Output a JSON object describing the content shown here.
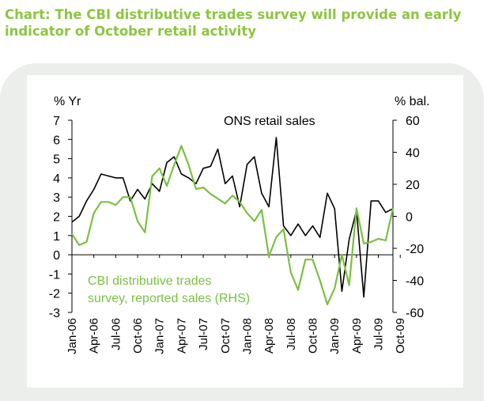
{
  "title": "Chart: The CBI distributive trades survey will provide an early indicator of October retail activity",
  "colors": {
    "accent": "#8cc63f",
    "panel": "#ebeeeb",
    "line_ons": "#000000",
    "line_cbi": "#7ac143"
  },
  "chart_data": {
    "type": "line",
    "left_axis_label": "% Yr",
    "right_axis_label": "% bal.",
    "left_ylim": [
      -3,
      7
    ],
    "right_ylim": [
      -60,
      60
    ],
    "left_ticks": [
      7,
      6,
      5,
      4,
      3,
      2,
      1,
      0,
      -1,
      -2,
      -3
    ],
    "right_ticks": [
      60,
      40,
      20,
      0,
      -20,
      -40,
      -60
    ],
    "x_tick_labels": [
      "Jan-06",
      "Apr-06",
      "Jul-06",
      "Oct-06",
      "Jan-07",
      "Apr-07",
      "Jul-07",
      "Oct-07",
      "Jan-08",
      "Apr-08",
      "Jul-08",
      "Oct-08",
      "Jan-09",
      "Apr-09",
      "Jul-09",
      "Oct-09"
    ],
    "x_tick_every_months": 3,
    "annotations": {
      "ons": "ONS retail sales",
      "cbi_line1": "CBI distributive trades",
      "cbi_line2": "survey, reported sales (RHS)"
    },
    "series": [
      {
        "name": "ONS retail sales",
        "axis": "left",
        "values": [
          1.7,
          2.0,
          2.8,
          3.4,
          4.2,
          4.1,
          4.0,
          4.0,
          2.8,
          3.4,
          2.9,
          3.7,
          3.3,
          4.8,
          5.1,
          4.2,
          4.0,
          3.7,
          4.5,
          4.6,
          5.5,
          3.7,
          4.1,
          2.5,
          4.7,
          5.1,
          3.2,
          2.5,
          6.1,
          1.5,
          1.0,
          1.6,
          1.0,
          1.5,
          0.9,
          3.2,
          2.4,
          -1.9,
          0.8,
          2.3,
          -2.2,
          2.8,
          2.8,
          2.2,
          2.4
        ]
      },
      {
        "name": "CBI distributive trades survey, reported sales (RHS)",
        "axis": "right",
        "values": [
          -11,
          -18,
          -16,
          2,
          9,
          9,
          7,
          12,
          12,
          -3,
          -10,
          25,
          30,
          19,
          32,
          44,
          32,
          17,
          18,
          14,
          11,
          8,
          13,
          9,
          2,
          -3,
          4,
          -25,
          -13,
          -8,
          -35,
          -46,
          -27,
          -27,
          -40,
          -55,
          -45,
          -24,
          -43,
          5,
          -17,
          -16,
          -14,
          -15,
          5
        ]
      }
    ]
  }
}
